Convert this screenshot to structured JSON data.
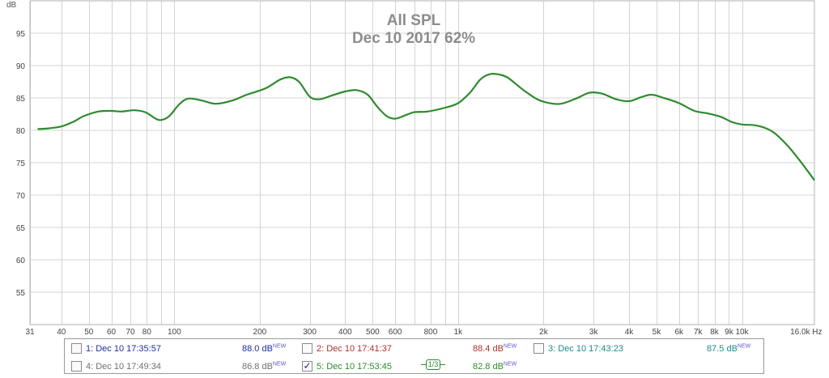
{
  "chart_data": {
    "type": "line",
    "title": "All SPL",
    "subtitle": "Dec 10 2017 62%",
    "ylabel": "dB",
    "xunit": "Hz",
    "xscale": "log",
    "xlim": [
      31,
      20000
    ],
    "ylim": [
      50,
      100
    ],
    "grid": true,
    "yticks": [
      55,
      60,
      65,
      70,
      75,
      80,
      85,
      90,
      95
    ],
    "xticks": [
      {
        "v": 31,
        "label": "31"
      },
      {
        "v": 40,
        "label": "40"
      },
      {
        "v": 50,
        "label": "50"
      },
      {
        "v": 60,
        "label": "60"
      },
      {
        "v": 70,
        "label": "70"
      },
      {
        "v": 80,
        "label": "80"
      },
      {
        "v": 100,
        "label": "100"
      },
      {
        "v": 200,
        "label": "200"
      },
      {
        "v": 300,
        "label": "300"
      },
      {
        "v": 400,
        "label": "400"
      },
      {
        "v": 500,
        "label": "500"
      },
      {
        "v": 600,
        "label": "600"
      },
      {
        "v": 800,
        "label": "800"
      },
      {
        "v": 1000,
        "label": "1k"
      },
      {
        "v": 2000,
        "label": "2k"
      },
      {
        "v": 3000,
        "label": "3k"
      },
      {
        "v": 4000,
        "label": "4k"
      },
      {
        "v": 5000,
        "label": "5k"
      },
      {
        "v": 6000,
        "label": "6k"
      },
      {
        "v": 7000,
        "label": "7k"
      },
      {
        "v": 8000,
        "label": "8k"
      },
      {
        "v": 9000,
        "label": "9k"
      },
      {
        "v": 10000,
        "label": "10k"
      },
      {
        "v": 16000,
        "label": "16.0k Hz"
      }
    ],
    "minor_grid_x": [
      31,
      40,
      50,
      60,
      70,
      80,
      90,
      100,
      200,
      300,
      400,
      500,
      600,
      700,
      800,
      900,
      1000,
      2000,
      3000,
      4000,
      5000,
      6000,
      7000,
      8000,
      9000,
      10000
    ],
    "series": [
      {
        "color": "#2e8b2e",
        "points": [
          [
            33,
            80.2
          ],
          [
            36,
            80.3
          ],
          [
            40,
            80.6
          ],
          [
            44,
            81.3
          ],
          [
            48,
            82.2
          ],
          [
            54,
            82.9
          ],
          [
            60,
            83.0
          ],
          [
            65,
            82.9
          ],
          [
            72,
            83.1
          ],
          [
            79,
            82.8
          ],
          [
            86,
            81.8
          ],
          [
            90,
            81.6
          ],
          [
            96,
            82.2
          ],
          [
            104,
            84.0
          ],
          [
            112,
            84.9
          ],
          [
            125,
            84.6
          ],
          [
            140,
            84.1
          ],
          [
            160,
            84.6
          ],
          [
            180,
            85.5
          ],
          [
            210,
            86.5
          ],
          [
            235,
            87.8
          ],
          [
            255,
            88.2
          ],
          [
            275,
            87.5
          ],
          [
            300,
            85.2
          ],
          [
            325,
            84.8
          ],
          [
            360,
            85.4
          ],
          [
            400,
            86.0
          ],
          [
            440,
            86.2
          ],
          [
            480,
            85.5
          ],
          [
            520,
            83.6
          ],
          [
            560,
            82.2
          ],
          [
            600,
            81.8
          ],
          [
            650,
            82.3
          ],
          [
            700,
            82.8
          ],
          [
            780,
            82.9
          ],
          [
            900,
            83.5
          ],
          [
            1000,
            84.2
          ],
          [
            1100,
            85.8
          ],
          [
            1200,
            87.9
          ],
          [
            1300,
            88.7
          ],
          [
            1400,
            88.6
          ],
          [
            1500,
            88.1
          ],
          [
            1700,
            86.2
          ],
          [
            1900,
            84.8
          ],
          [
            2100,
            84.2
          ],
          [
            2300,
            84.1
          ],
          [
            2600,
            84.9
          ],
          [
            2900,
            85.8
          ],
          [
            3200,
            85.7
          ],
          [
            3600,
            84.8
          ],
          [
            4000,
            84.5
          ],
          [
            4400,
            85.1
          ],
          [
            4800,
            85.5
          ],
          [
            5300,
            85.0
          ],
          [
            6000,
            84.2
          ],
          [
            6800,
            83.0
          ],
          [
            7600,
            82.6
          ],
          [
            8400,
            82.1
          ],
          [
            9200,
            81.3
          ],
          [
            10000,
            80.9
          ],
          [
            11000,
            80.8
          ],
          [
            12000,
            80.4
          ],
          [
            13000,
            79.6
          ],
          [
            14500,
            77.6
          ],
          [
            16000,
            75.3
          ],
          [
            18000,
            72.3
          ]
        ]
      }
    ]
  },
  "legend": {
    "entries": [
      {
        "name": "1: Dec 10 17:35:57",
        "value": "88.0 dB",
        "tag": "NEW",
        "color": "#1f2fa0",
        "checked": false
      },
      {
        "name": "2: Dec 10 17:41:37",
        "value": "88.4 dB",
        "tag": "NEW",
        "color": "#b03030",
        "checked": false
      },
      {
        "name": "3: Dec 10 17:43:23",
        "value": "87.5 dB",
        "tag": "NEW",
        "color": "#1f8a8a",
        "checked": false
      },
      {
        "name": "4: Dec 10 17:49:34",
        "value": "86.8 dB",
        "tag": "NEW",
        "color": "#707070",
        "checked": false
      },
      {
        "name": "5: Dec 10 17:53:45",
        "value": "82.8 dB",
        "tag": "NEW",
        "color": "#2e8b2e",
        "checked": true
      }
    ],
    "smoothing_label": "1/3",
    "check_mark": "✓"
  }
}
